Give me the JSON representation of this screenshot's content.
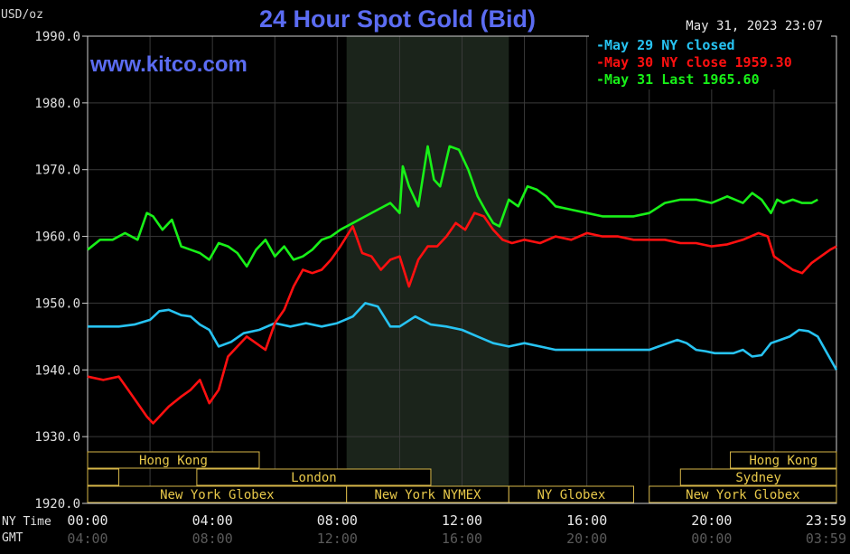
{
  "chart_data": {
    "type": "line",
    "title": "24 Hour Spot Gold (Bid)",
    "website": "www.kitco.com",
    "units_label": "USD/oz",
    "timestamp": "May 31, 2023 23:07",
    "y_range": [
      1920,
      1990
    ],
    "y_tick_labels": [
      "1990.0",
      "1980.0",
      "1970.0",
      "1960.0",
      "1950.0",
      "1940.0",
      "1930.0",
      "1920.0"
    ],
    "x_range_hours": [
      0,
      24
    ],
    "x_ticks_ny": [
      "00:00",
      "04:00",
      "08:00",
      "12:00",
      "16:00",
      "20:00",
      "23:59"
    ],
    "x_ticks_gmt": [
      "04:00",
      "08:00",
      "12:00",
      "16:00",
      "20:00",
      "00:00",
      "03:59"
    ],
    "x_axis_label_ny": "NY Time",
    "x_axis_label_gmt": "GMT",
    "shaded_region_hours": [
      8.3,
      13.5
    ],
    "grid": true,
    "legend_position": "top-right",
    "legend": [
      {
        "label": "May 29 NY closed",
        "color": "#27c3f2"
      },
      {
        "label": "May 30 NY close 1959.30",
        "color": "#ff1010"
      },
      {
        "label": "May 31 Last 1965.60",
        "color": "#18f018"
      }
    ],
    "sessions": [
      {
        "label": "Hong Kong",
        "row": 1,
        "start_h": 0,
        "end_h": 5.5
      },
      {
        "label": "",
        "row": 2,
        "start_h": 0,
        "end_h": 1.0
      },
      {
        "label": "London",
        "row": 2,
        "start_h": 3.5,
        "end_h": 11.0
      },
      {
        "label": "New York Globex",
        "row": 3,
        "start_h": 0,
        "end_h": 8.3
      },
      {
        "label": "New York NYMEX",
        "row": 3,
        "start_h": 8.3,
        "end_h": 13.5
      },
      {
        "label": "NY Globex",
        "row": 3,
        "start_h": 13.5,
        "end_h": 17.5
      },
      {
        "label": "Hong Kong",
        "row": 1,
        "start_h": 20.6,
        "end_h": 24
      },
      {
        "label": "Sydney",
        "row": 2,
        "start_h": 19.0,
        "end_h": 24
      },
      {
        "label": "New York Globex",
        "row": 3,
        "start_h": 18.0,
        "end_h": 24
      }
    ],
    "series": [
      {
        "name": "May 29 NY closed",
        "color": "#27c3f2",
        "x": [
          0,
          0.5,
          1,
          1.5,
          2,
          2.3,
          2.6,
          3,
          3.3,
          3.6,
          3.9,
          4.2,
          4.6,
          5,
          5.5,
          6,
          6.5,
          7,
          7.5,
          8,
          8.5,
          8.9,
          9.3,
          9.7,
          10,
          10.5,
          11,
          11.5,
          12,
          12.5,
          13,
          13.5,
          14,
          14.5,
          15,
          15.5,
          16,
          16.5,
          17,
          17.5,
          18,
          18.3,
          18.6,
          18.9,
          19.2,
          19.5,
          19.8,
          20.1,
          20.4,
          20.7,
          21,
          21.3,
          21.6,
          21.9,
          22.2,
          22.5,
          22.8,
          23.1,
          23.4,
          23.7,
          24
        ],
        "y": [
          1946.5,
          1946.5,
          1946.5,
          1946.8,
          1947.5,
          1948.8,
          1949.0,
          1948.2,
          1948.0,
          1946.8,
          1946.0,
          1943.5,
          1944.2,
          1945.5,
          1946.0,
          1947.0,
          1946.5,
          1947.0,
          1946.5,
          1947.0,
          1948.0,
          1950.0,
          1949.5,
          1946.5,
          1946.5,
          1948.0,
          1946.8,
          1946.5,
          1946.0,
          1945.0,
          1944.0,
          1943.5,
          1944.0,
          1943.5,
          1943.0,
          1943.0,
          1943.0,
          1943.0,
          1943.0,
          1943.0,
          1943.0,
          1943.5,
          1944.0,
          1944.5,
          1944.0,
          1943.0,
          1942.8,
          1942.5,
          1942.5,
          1942.5,
          1943.0,
          1942.0,
          1942.2,
          1944.0,
          1944.5,
          1945.0,
          1946.0,
          1945.8,
          1945.0,
          1942.5,
          1940.0
        ]
      },
      {
        "name": "May 30 NY close 1959.30",
        "color": "#ff1010",
        "x": [
          0,
          0.5,
          1,
          1.3,
          1.6,
          1.9,
          2.1,
          2.3,
          2.6,
          3,
          3.3,
          3.6,
          3.9,
          4.2,
          4.5,
          4.8,
          5.1,
          5.4,
          5.7,
          6,
          6.3,
          6.6,
          6.9,
          7.2,
          7.5,
          7.8,
          8.1,
          8.5,
          8.8,
          9.1,
          9.4,
          9.7,
          10,
          10.3,
          10.6,
          10.9,
          11.2,
          11.5,
          11.8,
          12.1,
          12.4,
          12.7,
          13,
          13.3,
          13.6,
          14,
          14.5,
          15,
          15.5,
          16,
          16.5,
          17,
          17.5,
          18,
          18.5,
          19,
          19.5,
          20,
          20.5,
          21,
          21.5,
          21.8,
          22,
          22.3,
          22.6,
          22.9,
          23.2,
          23.5,
          23.8,
          24
        ],
        "y": [
          1939.0,
          1938.5,
          1939.0,
          1937.0,
          1935.0,
          1933.0,
          1932.0,
          1933.0,
          1934.5,
          1936.0,
          1937.0,
          1938.5,
          1935.0,
          1937.0,
          1942.0,
          1943.5,
          1945.0,
          1944.0,
          1943.0,
          1947.0,
          1949.0,
          1952.5,
          1955.0,
          1954.5,
          1955.0,
          1956.5,
          1958.5,
          1961.5,
          1957.5,
          1957.0,
          1955.0,
          1956.5,
          1957.0,
          1952.5,
          1956.5,
          1958.5,
          1958.5,
          1960.0,
          1962.0,
          1961.0,
          1963.5,
          1963.0,
          1961.0,
          1959.5,
          1959.0,
          1959.5,
          1959.0,
          1960.0,
          1959.5,
          1960.5,
          1960.0,
          1960.0,
          1959.5,
          1959.5,
          1959.5,
          1959.0,
          1959.0,
          1958.5,
          1958.8,
          1959.5,
          1960.5,
          1960.0,
          1957.0,
          1956.0,
          1955.0,
          1954.5,
          1956.0,
          1957.0,
          1958.0,
          1958.5
        ]
      },
      {
        "name": "May 31 Last 1965.60",
        "color": "#18f018",
        "x": [
          0,
          0.4,
          0.8,
          1.2,
          1.6,
          1.9,
          2.1,
          2.4,
          2.7,
          3,
          3.3,
          3.6,
          3.9,
          4.2,
          4.5,
          4.8,
          5.1,
          5.4,
          5.7,
          6,
          6.3,
          6.6,
          6.9,
          7.2,
          7.5,
          7.8,
          8.1,
          8.5,
          8.9,
          9.3,
          9.7,
          10,
          10.1,
          10.3,
          10.6,
          10.9,
          11.1,
          11.3,
          11.6,
          11.9,
          12.2,
          12.5,
          12.8,
          13,
          13.2,
          13.5,
          13.8,
          14.1,
          14.4,
          14.7,
          15,
          15.5,
          16,
          16.5,
          17,
          17.5,
          18,
          18.5,
          19,
          19.5,
          20,
          20.5,
          21,
          21.3,
          21.6,
          21.9,
          22.1,
          22.3,
          22.6,
          22.9,
          23.2,
          23.4
        ],
        "y": [
          1958.0,
          1959.5,
          1959.5,
          1960.5,
          1959.5,
          1963.5,
          1963.0,
          1961.0,
          1962.5,
          1958.5,
          1958.0,
          1957.5,
          1956.5,
          1959.0,
          1958.5,
          1957.5,
          1955.5,
          1958.0,
          1959.5,
          1957.0,
          1958.5,
          1956.5,
          1957.0,
          1958.0,
          1959.5,
          1960.0,
          1961.0,
          1962.0,
          1963.0,
          1964.0,
          1965.0,
          1963.5,
          1970.5,
          1967.5,
          1964.5,
          1973.5,
          1968.5,
          1967.5,
          1973.5,
          1973.0,
          1970.0,
          1966.0,
          1963.5,
          1962.0,
          1961.5,
          1965.5,
          1964.5,
          1967.5,
          1967.0,
          1966.0,
          1964.5,
          1964.0,
          1963.5,
          1963.0,
          1963.0,
          1963.0,
          1963.5,
          1965.0,
          1965.5,
          1965.5,
          1965.0,
          1966.0,
          1965.0,
          1966.5,
          1965.5,
          1963.5,
          1965.5,
          1965.0,
          1965.5,
          1965.0,
          1965.0,
          1965.5
        ]
      }
    ]
  }
}
